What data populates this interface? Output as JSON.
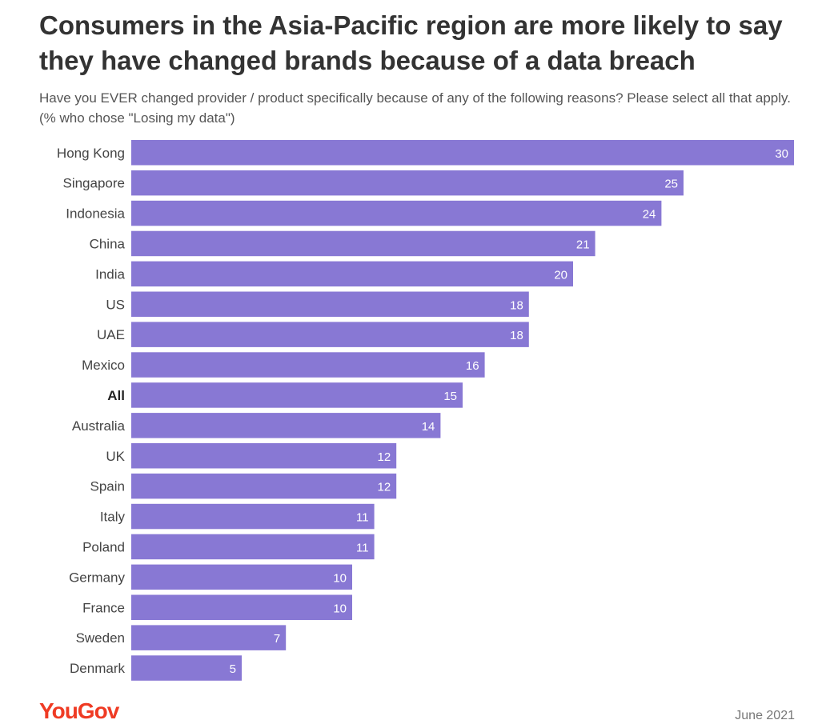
{
  "title": "Consumers in the Asia-Pacific region are more likely to say they have changed brands because of a data breach",
  "subtitle": "Have you EVER changed provider / product specifically because of any of the following reasons? Please select all that apply. (% who chose \"Losing my data\")",
  "footer": {
    "logo": "YouGov",
    "date": "June 2021"
  },
  "colors": {
    "bar": "#8878d4",
    "logo": "#ef3b24"
  },
  "chart_data": {
    "type": "bar",
    "orientation": "horizontal",
    "categories": [
      "Hong Kong",
      "Singapore",
      "Indonesia",
      "China",
      "India",
      "US",
      "UAE",
      "Mexico",
      "All",
      "Australia",
      "UK",
      "Spain",
      "Italy",
      "Poland",
      "Germany",
      "France",
      "Sweden",
      "Denmark"
    ],
    "values": [
      30,
      25,
      24,
      21,
      20,
      18,
      18,
      16,
      15,
      14,
      12,
      12,
      11,
      11,
      10,
      10,
      7,
      5
    ],
    "highlighted_category": "All",
    "xlim": [
      0,
      30
    ],
    "grid": false,
    "legend": "none"
  }
}
